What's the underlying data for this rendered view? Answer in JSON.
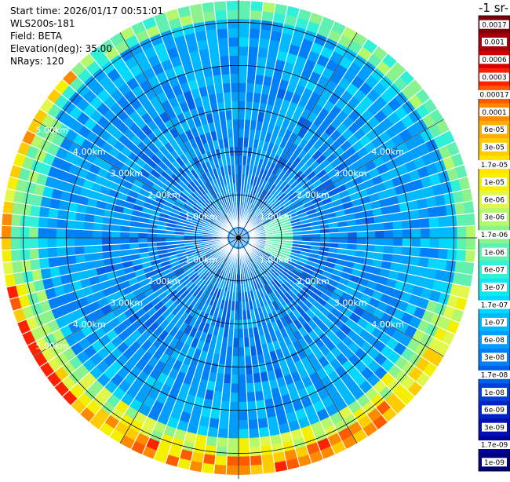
{
  "header": {
    "start_time": "Start time: 2026/01/17 00:51:01",
    "instrument": "WLS200s-181",
    "field": "Field: BETA",
    "elevation": "Elevation(deg): 35.00",
    "nrays": "NRays: 120"
  },
  "colorbar": {
    "title": "-1 sr-",
    "labels": [
      "0.0017",
      "0.001",
      "0.0006",
      "0.0003",
      "0.00017",
      "0.0001",
      "6e-05",
      "3e-05",
      "1.7e-05",
      "1e-05",
      "6e-06",
      "3e-06",
      "1.7e-06",
      "1e-06",
      "6e-07",
      "3e-07",
      "1.7e-07",
      "1e-07",
      "6e-08",
      "3e-08",
      "1.7e-08",
      "1e-08",
      "6e-09",
      "3e-09",
      "1.7e-09",
      "1e-09"
    ],
    "colors": [
      "#80000a",
      "#a8000a",
      "#d40000",
      "#ff2000",
      "#ff5a00",
      "#ff8a00",
      "#ffae00",
      "#ffcc00",
      "#ffe400",
      "#f4f000",
      "#e0f84a",
      "#b4f86c",
      "#8cf28c",
      "#60f0b0",
      "#30f0d8",
      "#10e8f0",
      "#00d8ff",
      "#00baff",
      "#009eff",
      "#0080f8",
      "#0060e8",
      "#0040d8",
      "#0024c8",
      "#0010b4",
      "#00009a",
      "#000078"
    ]
  },
  "chart_data": {
    "type": "polar_ppi_heatmap",
    "field": "BETA",
    "elevation_deg": 35.0,
    "n_rays": 120,
    "range_rings_km": [
      1,
      2,
      3,
      4,
      5
    ],
    "ring_labels": [
      "1.00km",
      "2.00km",
      "3.00km",
      "4.00km",
      "5.00km"
    ],
    "max_range_km": 5.5,
    "color_scale": "log",
    "value_range": [
      1e-09,
      0.0017
    ]
  }
}
